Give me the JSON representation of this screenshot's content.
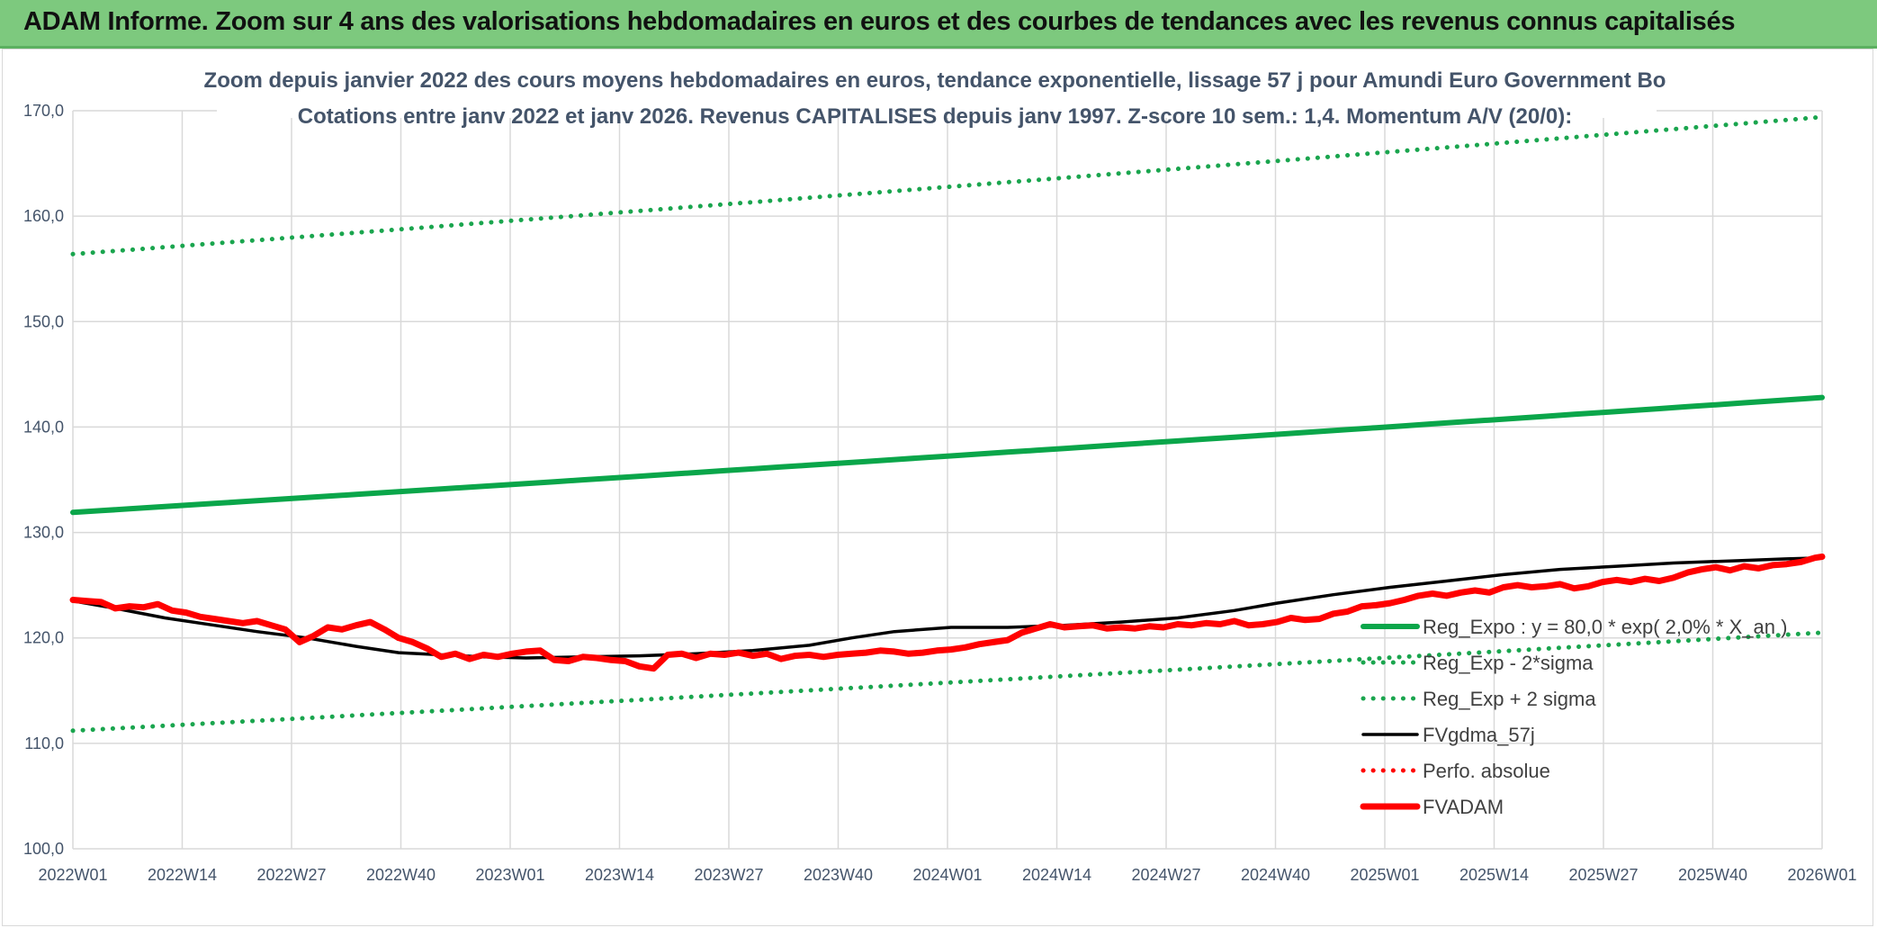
{
  "banner": {
    "title": "ADAM Informe. Zoom sur 4 ans des valorisations hebdomadaires en euros et des courbes de tendances avec les revenus connus capitalisés",
    "background": "#7dc97e"
  },
  "chart_data": {
    "type": "line",
    "title": "Zoom depuis janvier 2022 des cours moyens hebdomadaires en euros, tendance exponentielle, lissage 57 j pour Amundi Euro Government Bo",
    "subtitle": "Cotations entre janv 2022 et janv 2026. Revenus CAPITALISES depuis janv 1997. Z-score 10 sem.: 1,4. Momentum A/V (20/0):",
    "ylim": [
      100,
      170
    ],
    "yticks": [
      "100,0",
      "110,0",
      "120,0",
      "130,0",
      "140,0",
      "150,0",
      "160,0",
      "170,0"
    ],
    "xticks": [
      "2022W01",
      "2022W14",
      "2022W27",
      "2022W40",
      "2023W01",
      "2023W14",
      "2023W27",
      "2023W40",
      "2024W01",
      "2024W14",
      "2024W27",
      "2024W40",
      "2025W01",
      "2025W14",
      "2025W27",
      "2025W40",
      "2026W01"
    ],
    "grid": true,
    "legend_position": "right",
    "series": [
      {
        "name": "Reg_Expo : y = 80,0 * exp( 2,0% *  X_an )",
        "color": "#0aa64a",
        "style": "solid-thick",
        "start": 131.9,
        "end": 142.8
      },
      {
        "name": "Reg_Exp - 2*sigma",
        "color": "#1aa54e",
        "style": "dotted",
        "start": 111.2,
        "end": 120.5
      },
      {
        "name": "Reg_Exp + 2 sigma",
        "color": "#1aa54e",
        "style": "dotted",
        "start": 156.4,
        "end": 169.4
      },
      {
        "name": "FVgdma_57j",
        "color": "#000000",
        "style": "solid",
        "points": [
          [
            0,
            123.5
          ],
          [
            6,
            122.8
          ],
          [
            13,
            121.9
          ],
          [
            20,
            121.2
          ],
          [
            26,
            120.6
          ],
          [
            33,
            120.0
          ],
          [
            40,
            119.2
          ],
          [
            46,
            118.6
          ],
          [
            52,
            118.4
          ],
          [
            58,
            118.2
          ],
          [
            64,
            118.1
          ],
          [
            72,
            118.2
          ],
          [
            80,
            118.3
          ],
          [
            88,
            118.5
          ],
          [
            96,
            118.8
          ],
          [
            104,
            119.3
          ],
          [
            110,
            120.0
          ],
          [
            116,
            120.6
          ],
          [
            124,
            121.0
          ],
          [
            132,
            121.0
          ],
          [
            140,
            121.2
          ],
          [
            148,
            121.5
          ],
          [
            156,
            121.9
          ],
          [
            164,
            122.6
          ],
          [
            170,
            123.3
          ],
          [
            178,
            124.1
          ],
          [
            186,
            124.8
          ],
          [
            194,
            125.4
          ],
          [
            202,
            126.0
          ],
          [
            210,
            126.5
          ],
          [
            218,
            126.8
          ],
          [
            226,
            127.1
          ],
          [
            234,
            127.3
          ],
          [
            242,
            127.5
          ],
          [
            247,
            127.6
          ]
        ]
      },
      {
        "name": "Perfo. absolue",
        "color": "#ff0000",
        "style": "dotted",
        "points": []
      },
      {
        "name": "FVADAM",
        "color": "#ff0000",
        "style": "solid-thick",
        "points": [
          [
            0,
            123.6
          ],
          [
            2,
            123.5
          ],
          [
            4,
            123.4
          ],
          [
            6,
            122.8
          ],
          [
            8,
            123.0
          ],
          [
            10,
            122.9
          ],
          [
            12,
            123.2
          ],
          [
            14,
            122.6
          ],
          [
            16,
            122.4
          ],
          [
            18,
            122.0
          ],
          [
            20,
            121.8
          ],
          [
            22,
            121.6
          ],
          [
            24,
            121.4
          ],
          [
            26,
            121.6
          ],
          [
            28,
            121.2
          ],
          [
            30,
            120.8
          ],
          [
            32,
            119.6
          ],
          [
            34,
            120.2
          ],
          [
            36,
            121.0
          ],
          [
            38,
            120.8
          ],
          [
            40,
            121.2
          ],
          [
            42,
            121.5
          ],
          [
            44,
            120.8
          ],
          [
            46,
            120.0
          ],
          [
            48,
            119.6
          ],
          [
            50,
            119.0
          ],
          [
            52,
            118.2
          ],
          [
            54,
            118.5
          ],
          [
            56,
            118.0
          ],
          [
            58,
            118.4
          ],
          [
            60,
            118.2
          ],
          [
            62,
            118.5
          ],
          [
            64,
            118.7
          ],
          [
            66,
            118.8
          ],
          [
            68,
            117.9
          ],
          [
            70,
            117.8
          ],
          [
            72,
            118.2
          ],
          [
            74,
            118.1
          ],
          [
            76,
            117.9
          ],
          [
            78,
            117.8
          ],
          [
            80,
            117.3
          ],
          [
            82,
            117.1
          ],
          [
            84,
            118.4
          ],
          [
            86,
            118.5
          ],
          [
            88,
            118.1
          ],
          [
            90,
            118.5
          ],
          [
            92,
            118.4
          ],
          [
            94,
            118.6
          ],
          [
            96,
            118.3
          ],
          [
            98,
            118.5
          ],
          [
            100,
            118.0
          ],
          [
            102,
            118.3
          ],
          [
            104,
            118.4
          ],
          [
            106,
            118.2
          ],
          [
            108,
            118.4
          ],
          [
            110,
            118.5
          ],
          [
            112,
            118.6
          ],
          [
            114,
            118.8
          ],
          [
            116,
            118.7
          ],
          [
            118,
            118.5
          ],
          [
            120,
            118.6
          ],
          [
            122,
            118.8
          ],
          [
            124,
            118.9
          ],
          [
            126,
            119.1
          ],
          [
            128,
            119.4
          ],
          [
            130,
            119.6
          ],
          [
            132,
            119.8
          ],
          [
            134,
            120.5
          ],
          [
            136,
            120.9
          ],
          [
            138,
            121.3
          ],
          [
            140,
            121.0
          ],
          [
            142,
            121.1
          ],
          [
            144,
            121.2
          ],
          [
            146,
            120.9
          ],
          [
            148,
            121.0
          ],
          [
            150,
            120.9
          ],
          [
            152,
            121.1
          ],
          [
            154,
            121.0
          ],
          [
            156,
            121.3
          ],
          [
            158,
            121.2
          ],
          [
            160,
            121.4
          ],
          [
            162,
            121.3
          ],
          [
            164,
            121.6
          ],
          [
            166,
            121.2
          ],
          [
            168,
            121.3
          ],
          [
            170,
            121.5
          ],
          [
            172,
            121.9
          ],
          [
            174,
            121.7
          ],
          [
            176,
            121.8
          ],
          [
            178,
            122.3
          ],
          [
            180,
            122.5
          ],
          [
            182,
            123.0
          ],
          [
            184,
            123.1
          ],
          [
            186,
            123.3
          ],
          [
            188,
            123.6
          ],
          [
            190,
            124.0
          ],
          [
            192,
            124.2
          ],
          [
            194,
            124.0
          ],
          [
            196,
            124.3
          ],
          [
            198,
            124.5
          ],
          [
            200,
            124.3
          ],
          [
            202,
            124.8
          ],
          [
            204,
            125.0
          ],
          [
            206,
            124.8
          ],
          [
            208,
            124.9
          ],
          [
            210,
            125.1
          ],
          [
            212,
            124.7
          ],
          [
            214,
            124.9
          ],
          [
            216,
            125.3
          ],
          [
            218,
            125.5
          ],
          [
            220,
            125.3
          ],
          [
            222,
            125.6
          ],
          [
            224,
            125.4
          ],
          [
            226,
            125.7
          ],
          [
            228,
            126.2
          ],
          [
            230,
            126.5
          ],
          [
            232,
            126.7
          ],
          [
            234,
            126.4
          ],
          [
            236,
            126.8
          ],
          [
            238,
            126.6
          ],
          [
            240,
            126.9
          ],
          [
            242,
            127.0
          ],
          [
            244,
            127.2
          ],
          [
            246,
            127.6
          ],
          [
            247,
            127.7
          ]
        ]
      }
    ]
  }
}
